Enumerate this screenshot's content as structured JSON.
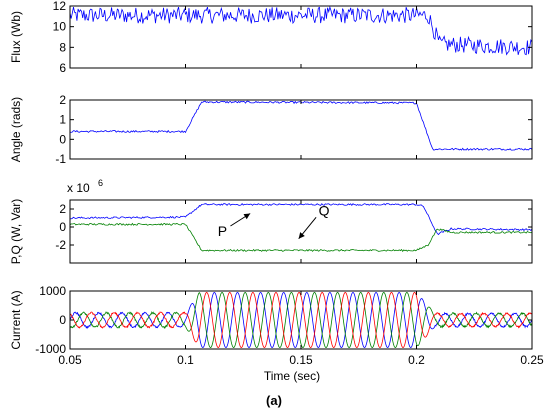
{
  "caption": "(a)",
  "x_axis": {
    "label": "Time (sec)",
    "range": [
      0.05,
      0.25
    ],
    "ticks": [
      0.05,
      0.1,
      0.15,
      0.2,
      0.25
    ],
    "tick_labels": [
      "0.05",
      "0.1",
      "0.15",
      "0.2",
      "0.25"
    ]
  },
  "colors": {
    "blue": "#0000ff",
    "green": "#008000",
    "red": "#ff0000",
    "axes": "#000000"
  },
  "chart_data": [
    {
      "type": "line",
      "ylabel": "Flux (Wb)",
      "ylim": [
        6,
        12
      ],
      "yticks": [
        6,
        8,
        10,
        12
      ],
      "ytick_labels": [
        "6",
        "8",
        "10",
        "12"
      ],
      "series": [
        {
          "color": "blue",
          "x": [
            0.05,
            0.2,
            0.205,
            0.21,
            0.25
          ],
          "values": [
            11.1,
            11.1,
            11.1,
            8.3,
            8.0
          ],
          "ripple": 0.8
        }
      ]
    },
    {
      "type": "line",
      "ylabel": "Angle (rads)",
      "ylim": [
        -1,
        2
      ],
      "yticks": [
        -1,
        0,
        1,
        2
      ],
      "ytick_labels": [
        "-1",
        "0",
        "1",
        "2"
      ],
      "series": [
        {
          "color": "blue",
          "x": [
            0.05,
            0.1,
            0.107,
            0.2,
            0.207,
            0.25
          ],
          "values": [
            0.4,
            0.4,
            1.9,
            1.85,
            -0.5,
            -0.5
          ],
          "ripple": 0.05
        }
      ]
    },
    {
      "type": "line",
      "ylabel": "P,Q (W, Var)",
      "scale_label": "x 10",
      "scale_exponent": "6",
      "ylim": [
        -4,
        3
      ],
      "yticks": [
        -2,
        0,
        2
      ],
      "ytick_labels": [
        "-2",
        "0",
        "2"
      ],
      "annotations": [
        {
          "text": "P",
          "x": 0.116,
          "y": -1.0,
          "arrow_to": [
            0.128,
            1.5
          ]
        },
        {
          "text": "Q",
          "x": 0.16,
          "y": 1.3,
          "arrow_to": [
            0.149,
            -1.3
          ]
        }
      ],
      "series": [
        {
          "color": "blue",
          "x": [
            0.05,
            0.1,
            0.107,
            0.2,
            0.203,
            0.209,
            0.215,
            0.25
          ],
          "values": [
            1.0,
            1.1,
            2.5,
            2.5,
            2.3,
            -0.8,
            -0.2,
            -0.3
          ],
          "ripple": 0.1
        },
        {
          "color": "green",
          "x": [
            0.05,
            0.1,
            0.107,
            0.2,
            0.205,
            0.209,
            0.215,
            0.25
          ],
          "values": [
            0.3,
            0.3,
            -2.6,
            -2.6,
            -2.0,
            -0.2,
            -0.6,
            -0.6
          ],
          "ripple": 0.1
        }
      ]
    },
    {
      "type": "line",
      "ylabel": "Current (A)",
      "ylim": [
        -1000,
        1000
      ],
      "yticks": [
        -1000,
        0,
        1000
      ],
      "ytick_labels": [
        "-1000",
        "0",
        "1000"
      ],
      "waveform": {
        "frequency_hz": 100,
        "amplitude_before": 250,
        "amplitude_during": 950,
        "amplitude_after": 230,
        "fault_start": 0.1,
        "fault_end": 0.2
      },
      "series": [
        {
          "color": "blue",
          "phase_deg": 0
        },
        {
          "color": "green",
          "phase_deg": -120
        },
        {
          "color": "red",
          "phase_deg": 120
        }
      ]
    }
  ]
}
